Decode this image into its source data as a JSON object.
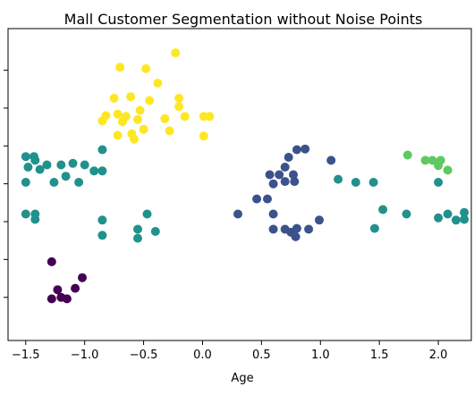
{
  "chart_data": {
    "type": "scatter",
    "title": "Mall Customer Segmentation without Noise Points",
    "xlabel": "Age",
    "ylabel": "",
    "xlim": [
      -1.65,
      2.28
    ],
    "ylim": [
      -2.07,
      2.05
    ],
    "x_ticks": [
      -1.5,
      -1.0,
      -0.5,
      0.0,
      0.5,
      1.0,
      1.5,
      2.0
    ],
    "x_tick_labels": [
      "−1.5",
      "−1.0",
      "−0.5",
      "0.0",
      "0.5",
      "1.0",
      "1.5",
      "2.0"
    ],
    "y_ticks": [
      -1.5,
      -1.0,
      -0.5,
      0.0,
      0.5,
      1.0,
      1.5
    ],
    "y_tick_labels_visible": false,
    "grid": false,
    "colors": {
      "cluster_0": "#440154",
      "cluster_1": "#3b528b",
      "cluster_2": "#21918c",
      "cluster_3": "#5ec962",
      "cluster_4": "#fde725"
    },
    "series": [
      {
        "color_key": "cluster_0",
        "points": [
          [
            -1.28,
            -1.03
          ],
          [
            -1.02,
            -1.24
          ],
          [
            -1.23,
            -1.4
          ],
          [
            -1.08,
            -1.38
          ],
          [
            -1.2,
            -1.5
          ],
          [
            -1.28,
            -1.52
          ],
          [
            -1.15,
            -1.52
          ]
        ]
      },
      {
        "color_key": "cluster_1",
        "points": [
          [
            0.3,
            -0.4
          ],
          [
            0.46,
            -0.2
          ],
          [
            0.55,
            -0.2
          ],
          [
            0.6,
            -0.4
          ],
          [
            0.6,
            -0.6
          ],
          [
            0.7,
            -0.6
          ],
          [
            0.75,
            -0.64
          ],
          [
            0.8,
            -0.59
          ],
          [
            0.79,
            -0.7
          ],
          [
            0.9,
            -0.6
          ],
          [
            0.99,
            -0.48
          ],
          [
            0.6,
            0.0
          ],
          [
            0.57,
            0.12
          ],
          [
            0.65,
            0.12
          ],
          [
            0.7,
            0.22
          ],
          [
            0.77,
            0.12
          ],
          [
            0.78,
            0.03
          ],
          [
            0.73,
            0.35
          ],
          [
            0.8,
            0.45
          ],
          [
            0.87,
            0.46
          ],
          [
            1.09,
            0.31
          ],
          [
            0.7,
            0.03
          ]
        ]
      },
      {
        "color_key": "cluster_2",
        "points": [
          [
            -1.5,
            0.36
          ],
          [
            -1.43,
            0.36
          ],
          [
            -1.42,
            0.31
          ],
          [
            -1.48,
            0.22
          ],
          [
            -1.38,
            0.19
          ],
          [
            -1.32,
            0.25
          ],
          [
            -1.2,
            0.25
          ],
          [
            -1.1,
            0.27
          ],
          [
            -1.16,
            0.1
          ],
          [
            -1.26,
            0.02
          ],
          [
            -1.0,
            0.25
          ],
          [
            -0.92,
            0.17
          ],
          [
            -0.85,
            0.17
          ],
          [
            -0.85,
            0.45
          ],
          [
            -1.5,
            0.02
          ],
          [
            -1.05,
            0.02
          ],
          [
            -1.5,
            -0.4
          ],
          [
            -1.42,
            -0.4
          ],
          [
            -1.42,
            -0.47
          ],
          [
            -0.85,
            -0.48
          ],
          [
            -0.85,
            -0.68
          ],
          [
            -0.55,
            -0.6
          ],
          [
            -0.55,
            -0.72
          ],
          [
            -0.47,
            -0.4
          ],
          [
            -0.4,
            -0.63
          ],
          [
            1.15,
            0.06
          ],
          [
            1.3,
            0.02
          ],
          [
            1.45,
            0.02
          ],
          [
            1.53,
            -0.34
          ],
          [
            1.46,
            -0.59
          ],
          [
            1.73,
            -0.4
          ],
          [
            2.0,
            0.02
          ],
          [
            2.08,
            -0.4
          ],
          [
            2.0,
            -0.45
          ],
          [
            2.15,
            -0.48
          ],
          [
            2.22,
            -0.38
          ],
          [
            2.22,
            -0.47
          ]
        ]
      },
      {
        "color_key": "cluster_3",
        "points": [
          [
            1.74,
            0.38
          ],
          [
            1.89,
            0.31
          ],
          [
            1.95,
            0.31
          ],
          [
            2.02,
            0.31
          ],
          [
            2.0,
            0.24
          ],
          [
            2.08,
            0.18
          ]
        ]
      },
      {
        "color_key": "cluster_4",
        "points": [
          [
            -0.23,
            1.73
          ],
          [
            -0.7,
            1.54
          ],
          [
            -0.48,
            1.52
          ],
          [
            -0.38,
            1.33
          ],
          [
            -0.75,
            1.13
          ],
          [
            -0.61,
            1.15
          ],
          [
            -0.45,
            1.1
          ],
          [
            -0.2,
            1.13
          ],
          [
            -0.2,
            1.02
          ],
          [
            -0.82,
            0.9
          ],
          [
            -0.72,
            0.92
          ],
          [
            -0.65,
            0.89
          ],
          [
            -0.53,
            0.97
          ],
          [
            -0.68,
            0.82
          ],
          [
            -0.55,
            0.85
          ],
          [
            -0.72,
            0.64
          ],
          [
            -0.6,
            0.66
          ],
          [
            -0.5,
            0.72
          ],
          [
            -0.58,
            0.59
          ],
          [
            -0.32,
            0.86
          ],
          [
            -0.28,
            0.7
          ],
          [
            -0.15,
            0.89
          ],
          [
            0.01,
            0.89
          ],
          [
            -0.85,
            0.83
          ],
          [
            0.01,
            0.63
          ],
          [
            0.06,
            0.89
          ]
        ]
      }
    ]
  }
}
